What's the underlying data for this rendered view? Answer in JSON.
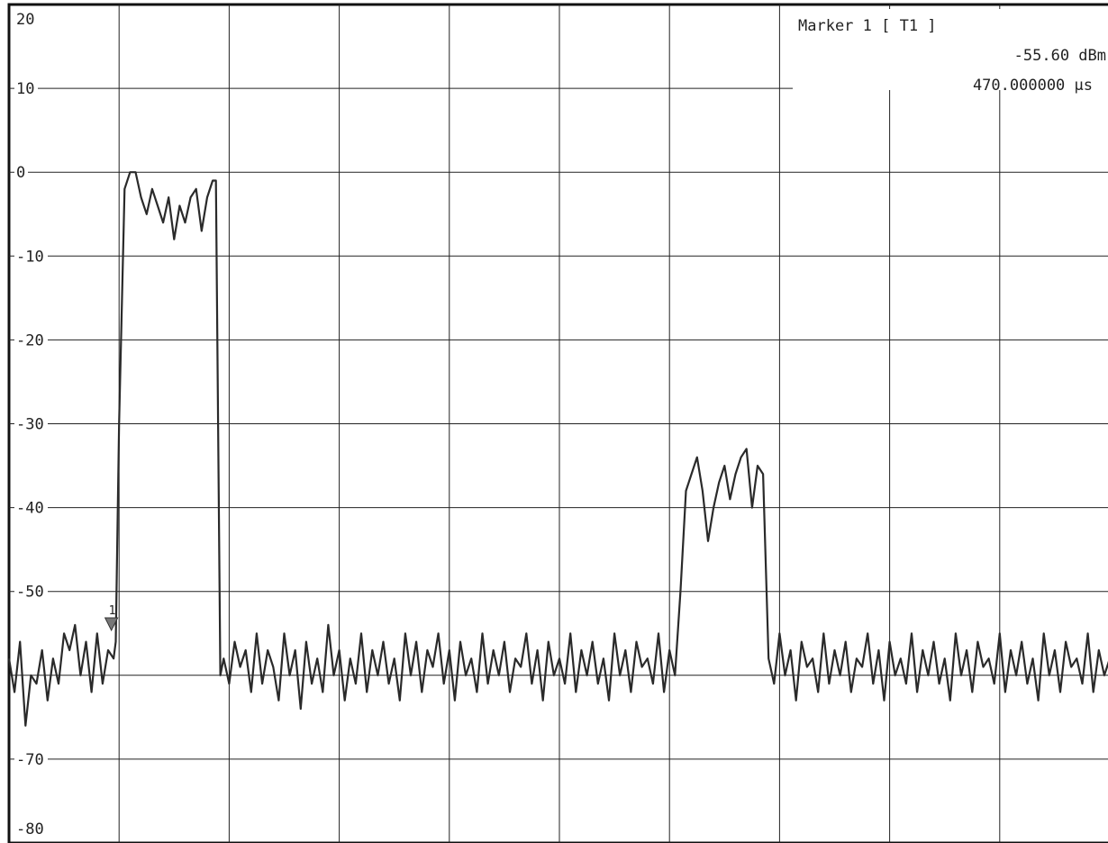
{
  "chart_data": {
    "type": "line",
    "title": "",
    "xlabel": "",
    "ylabel": "",
    "ylim": [
      -80,
      20
    ],
    "xlim": [
      0,
      10
    ],
    "grid": true,
    "ytick_labels": [
      "20",
      "10",
      "0",
      "-10",
      "-20",
      "-30",
      "-40",
      "-50",
      "-60",
      "-70",
      "-80"
    ],
    "marker": {
      "title": "Marker 1 [ T1 ]",
      "level": "-55.60 dBm",
      "time": "470.000000 µs",
      "label": "1"
    },
    "series": [
      {
        "x": [
          0.0,
          0.05,
          0.1,
          0.15,
          0.2,
          0.25,
          0.3,
          0.35,
          0.4,
          0.45,
          0.5,
          0.55,
          0.6,
          0.65,
          0.7,
          0.75,
          0.8,
          0.85,
          0.9,
          0.95,
          0.97,
          1.0,
          1.05,
          1.1,
          1.15,
          1.2,
          1.25,
          1.3,
          1.35,
          1.4,
          1.45,
          1.5,
          1.55,
          1.6,
          1.65,
          1.7,
          1.75,
          1.8,
          1.85,
          1.88,
          1.92,
          1.95,
          2.0,
          2.05,
          2.1,
          2.15,
          2.2,
          2.25,
          2.3,
          2.35,
          2.4,
          2.45,
          2.5,
          2.55,
          2.6,
          2.65,
          2.7,
          2.75,
          2.8,
          2.85,
          2.9,
          2.95,
          3.0,
          3.05,
          3.1,
          3.15,
          3.2,
          3.25,
          3.3,
          3.35,
          3.4,
          3.45,
          3.5,
          3.55,
          3.6,
          3.65,
          3.7,
          3.75,
          3.8,
          3.85,
          3.9,
          3.95,
          4.0,
          4.05,
          4.1,
          4.15,
          4.2,
          4.25,
          4.3,
          4.35,
          4.4,
          4.45,
          4.5,
          4.55,
          4.6,
          4.65,
          4.7,
          4.75,
          4.8,
          4.85,
          4.9,
          4.95,
          5.0,
          5.05,
          5.1,
          5.15,
          5.2,
          5.25,
          5.3,
          5.35,
          5.4,
          5.45,
          5.5,
          5.55,
          5.6,
          5.65,
          5.7,
          5.75,
          5.8,
          5.85,
          5.9,
          5.95,
          6.0,
          6.05,
          6.1,
          6.15,
          6.2,
          6.25,
          6.3,
          6.35,
          6.4,
          6.45,
          6.5,
          6.55,
          6.6,
          6.65,
          6.7,
          6.75,
          6.8,
          6.85,
          6.9,
          6.95,
          7.0,
          7.05,
          7.1,
          7.15,
          7.2,
          7.25,
          7.3,
          7.35,
          7.4,
          7.45,
          7.5,
          7.55,
          7.6,
          7.65,
          7.7,
          7.75,
          7.8,
          7.85,
          7.9,
          7.95,
          8.0,
          8.05,
          8.1,
          8.15,
          8.2,
          8.25,
          8.3,
          8.35,
          8.4,
          8.45,
          8.5,
          8.55,
          8.6,
          8.65,
          8.7,
          8.75,
          8.8,
          8.85,
          8.9,
          8.95,
          9.0,
          9.05,
          9.1,
          9.15,
          9.2,
          9.25,
          9.3,
          9.35,
          9.4,
          9.45,
          9.5,
          9.55,
          9.6,
          9.65,
          9.7,
          9.75,
          9.8,
          9.85,
          9.9,
          9.95,
          10.0
        ],
        "y": [
          -58,
          -62,
          -56,
          -66,
          -60,
          -61,
          -57,
          -63,
          -58,
          -61,
          -55,
          -57,
          -54,
          -60,
          -56,
          -62,
          -55,
          -61,
          -57,
          -58,
          -56,
          -30,
          -2,
          0,
          0,
          -3,
          -5,
          -2,
          -4,
          -6,
          -3,
          -8,
          -4,
          -6,
          -3,
          -2,
          -7,
          -3,
          -1,
          -1,
          -60,
          -58,
          -61,
          -56,
          -59,
          -57,
          -62,
          -55,
          -61,
          -57,
          -59,
          -63,
          -55,
          -60,
          -57,
          -64,
          -56,
          -61,
          -58,
          -62,
          -54,
          -60,
          -57,
          -63,
          -58,
          -61,
          -55,
          -62,
          -57,
          -60,
          -56,
          -61,
          -58,
          -63,
          -55,
          -60,
          -56,
          -62,
          -57,
          -59,
          -55,
          -61,
          -57,
          -63,
          -56,
          -60,
          -58,
          -62,
          -55,
          -61,
          -57,
          -60,
          -56,
          -62,
          -58,
          -59,
          -55,
          -61,
          -57,
          -63,
          -56,
          -60,
          -58,
          -61,
          -55,
          -62,
          -57,
          -60,
          -56,
          -61,
          -58,
          -63,
          -55,
          -60,
          -57,
          -62,
          -56,
          -59,
          -58,
          -61,
          -55,
          -62,
          -57,
          -60,
          -50,
          -38,
          -36,
          -34,
          -38,
          -44,
          -40,
          -37,
          -35,
          -39,
          -36,
          -34,
          -33,
          -40,
          -35,
          -36,
          -58,
          -61,
          -55,
          -60,
          -57,
          -63,
          -56,
          -59,
          -58,
          -62,
          -55,
          -61,
          -57,
          -60,
          -56,
          -62,
          -58,
          -59,
          -55,
          -61,
          -57,
          -63,
          -56,
          -60,
          -58,
          -61,
          -55,
          -62,
          -57,
          -60,
          -56,
          -61,
          -58,
          -63,
          -55,
          -60,
          -57,
          -62,
          -56,
          -59,
          -58,
          -61,
          -55,
          -62,
          -57,
          -60,
          -56,
          -61,
          -58,
          -63,
          -55,
          -60,
          -57,
          -62,
          -56,
          -59,
          -58,
          -61,
          -55,
          -62,
          -57,
          -60,
          -58
        ]
      }
    ]
  }
}
